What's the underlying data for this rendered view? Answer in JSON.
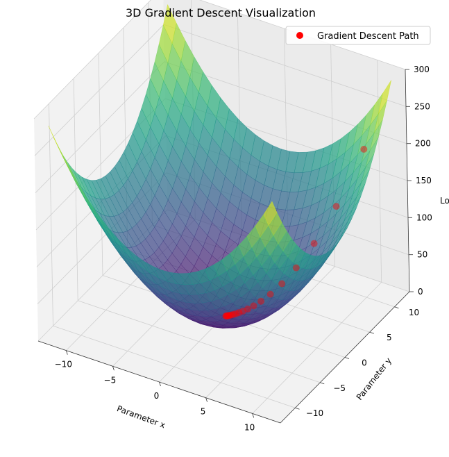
{
  "chart_data": {
    "type": "surface3d",
    "title": "3D Gradient Descent Visualization",
    "xlabel": "Parameter x",
    "ylabel": "Parameter y",
    "zlabel": "Loss",
    "xlim": [
      -13,
      13
    ],
    "ylim": [
      -13,
      13
    ],
    "zlim": [
      0,
      300
    ],
    "x_ticks": [
      -10,
      -5,
      0,
      5,
      10
    ],
    "y_ticks": [
      -10,
      -5,
      0,
      5,
      10
    ],
    "z_ticks": [
      0,
      50,
      100,
      150,
      200,
      250,
      300
    ],
    "grid": true,
    "colormap": "viridis",
    "surface": {
      "name": "Loss surface",
      "function": "x^2 + y^2"
    },
    "legend": {
      "position": "top-right",
      "entries": [
        "Gradient Descent Path"
      ]
    },
    "path_color": "#ff0000",
    "series": [
      {
        "name": "Gradient Descent Path",
        "x": [
          10,
          8,
          6.4,
          5.12,
          4.1,
          3.28,
          2.62,
          2.1,
          1.68,
          1.34,
          1.07,
          0.86,
          0.69,
          0.55,
          0.44,
          0.35,
          0.28,
          0.23,
          0.18,
          0.14
        ],
        "y": [
          10,
          8,
          6.4,
          5.12,
          4.1,
          3.28,
          2.62,
          2.1,
          1.68,
          1.34,
          1.07,
          0.86,
          0.69,
          0.55,
          0.44,
          0.35,
          0.28,
          0.23,
          0.18,
          0.14
        ],
        "z": [
          200,
          128,
          81.92,
          52.43,
          33.55,
          21.47,
          13.74,
          8.8,
          5.63,
          3.6,
          2.31,
          1.48,
          0.94,
          0.6,
          0.39,
          0.25,
          0.16,
          0.1,
          0.06,
          0.04
        ]
      }
    ]
  }
}
